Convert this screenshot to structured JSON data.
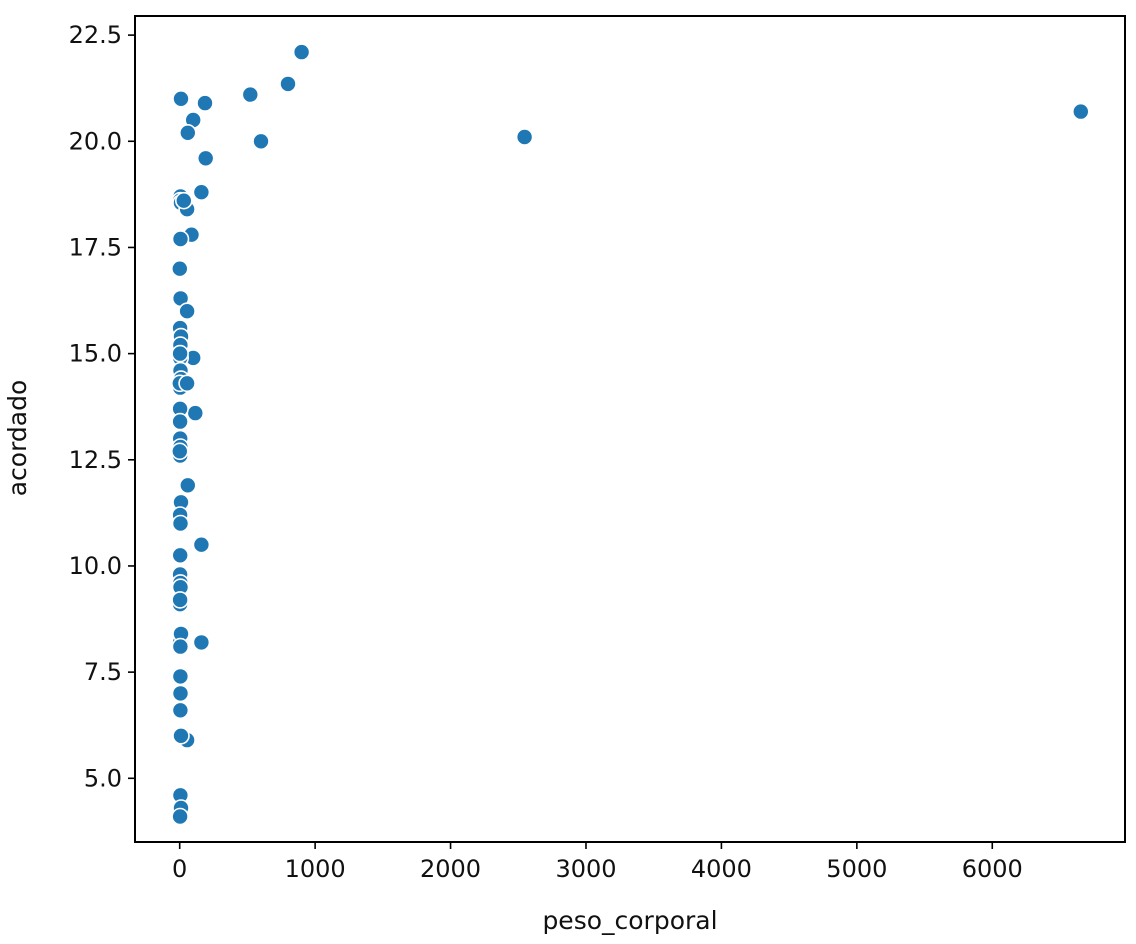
{
  "chart_data": {
    "type": "scatter",
    "title": "",
    "xlabel": "peso_corporal",
    "ylabel": "acordado",
    "xlim": [
      -330,
      6980
    ],
    "ylim": [
      3.5,
      22.95
    ],
    "xticks": [
      0,
      1000,
      2000,
      3000,
      4000,
      5000,
      6000
    ],
    "xtick_labels": [
      "0",
      "1000",
      "2000",
      "3000",
      "4000",
      "5000",
      "6000"
    ],
    "yticks": [
      5.0,
      7.5,
      10.0,
      12.5,
      15.0,
      17.5,
      20.0,
      22.5
    ],
    "ytick_labels": [
      "5.0",
      "7.5",
      "10.0",
      "12.5",
      "15.0",
      "17.5",
      "20.0",
      "22.5"
    ],
    "grid": false,
    "legend": "none",
    "marker_color": "#1f77b4",
    "marker_edge_color": "#ffffff",
    "series": [
      {
        "x": [
          6654,
          2547,
          900,
          800,
          521,
          600,
          187,
          192,
          100,
          60,
          10,
          160,
          6,
          8,
          3,
          10,
          55,
          87,
          6,
          1,
          7,
          55,
          3,
          10,
          100,
          4,
          4,
          6,
          10,
          4,
          115,
          3,
          3,
          4,
          5,
          60,
          4,
          10,
          3,
          6,
          160,
          4,
          3,
          5,
          6,
          3,
          3,
          160,
          3,
          10,
          5,
          5,
          6,
          5,
          55,
          10,
          5,
          10,
          3,
          0.6,
          1,
          5,
          3,
          55,
          30
        ],
        "y": [
          20.7,
          20.1,
          22.1,
          21.35,
          21.1,
          20.0,
          20.9,
          19.6,
          20.5,
          20.2,
          21.0,
          18.8,
          18.7,
          18.6,
          18.6,
          18.55,
          18.4,
          17.8,
          17.7,
          17.0,
          16.3,
          16.0,
          15.6,
          15.4,
          14.9,
          15.1,
          14.9,
          14.6,
          14.4,
          14.2,
          13.6,
          13.7,
          13.4,
          13.0,
          12.8,
          11.9,
          12.6,
          11.5,
          11.2,
          11.0,
          10.5,
          10.25,
          9.8,
          9.6,
          9.5,
          9.1,
          9.2,
          8.2,
          8.2,
          8.4,
          8.1,
          7.4,
          7.0,
          6.6,
          5.9,
          6.0,
          4.6,
          4.3,
          4.1,
          14.3,
          12.7,
          15.2,
          15.0,
          14.3,
          18.6
        ]
      }
    ]
  }
}
